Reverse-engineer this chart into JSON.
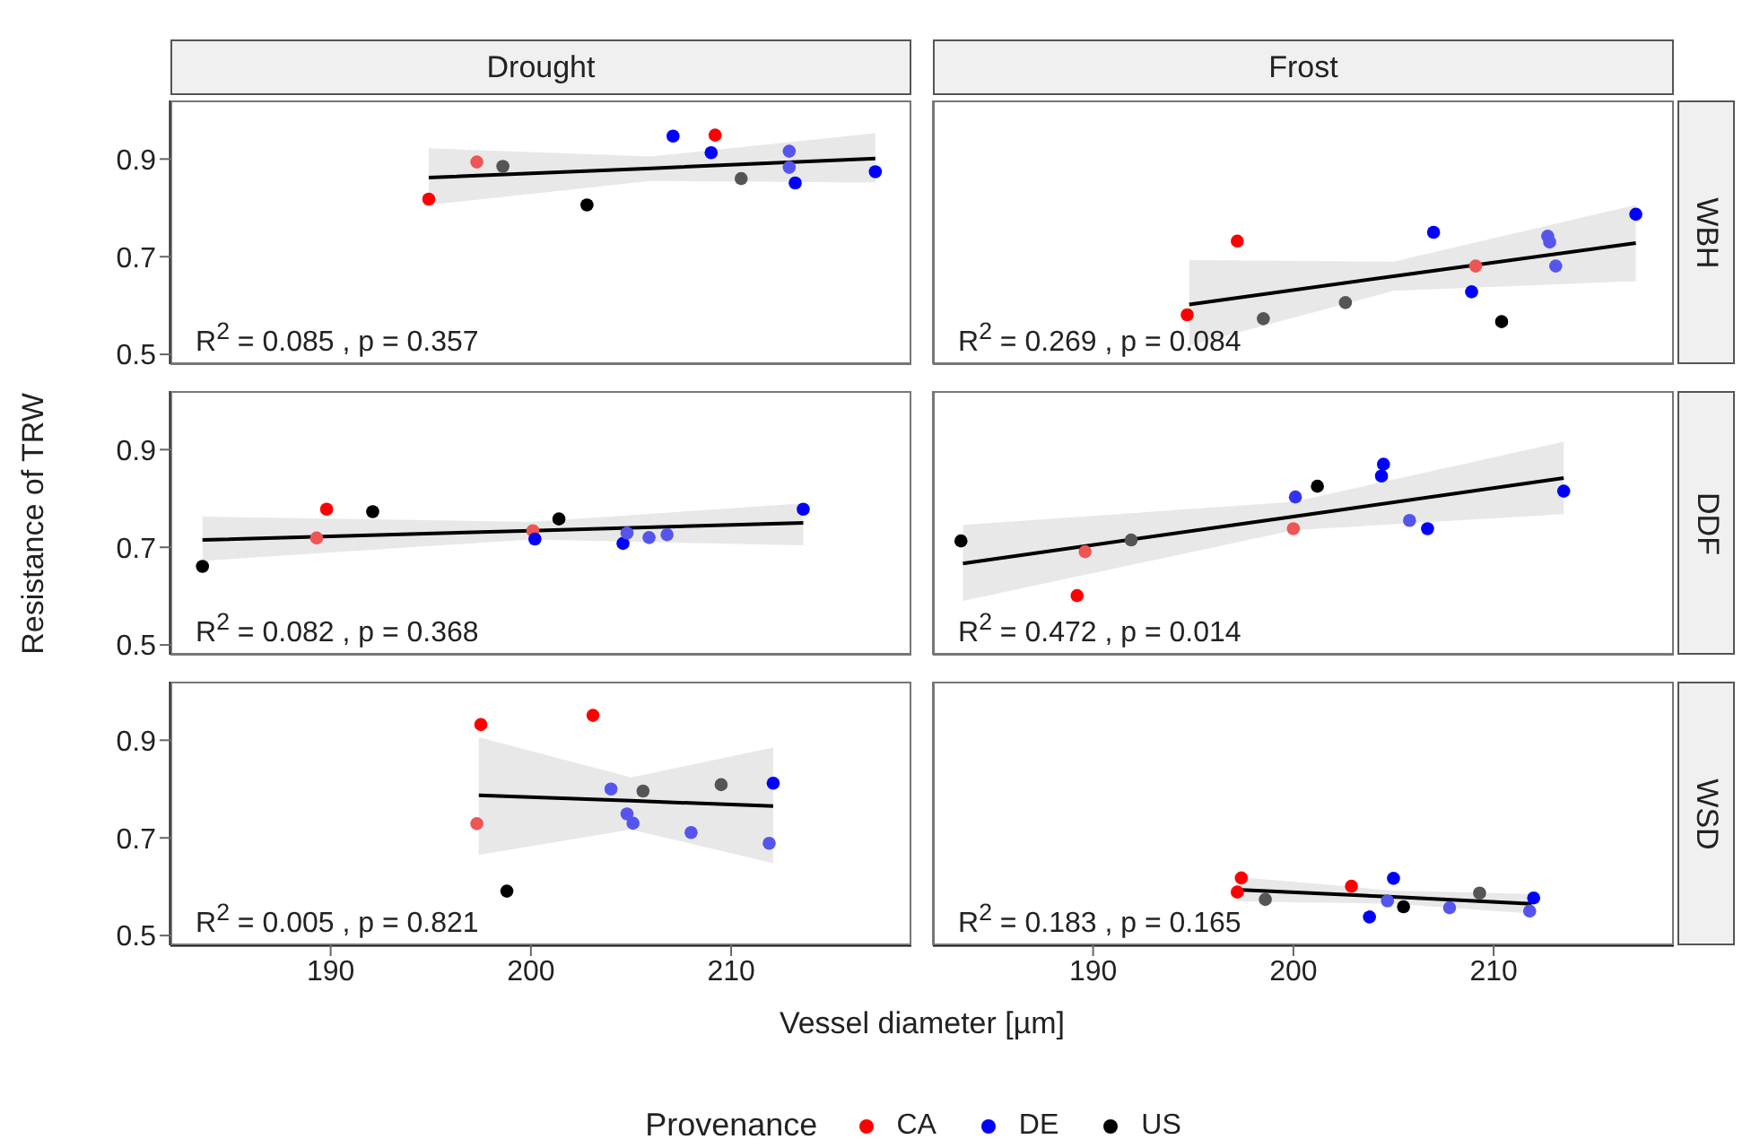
{
  "chart_data": [
    {
      "type": "scatter",
      "title": "Drought",
      "legend": "bottom",
      "legend_title": "Provenance",
      "xlim": [
        182,
        219
      ],
      "xticks": [
        190,
        200,
        210
      ],
      "ylim": [
        0.48,
        1.02
      ],
      "yticks": [
        0.5,
        0.7,
        0.9
      ],
      "tick_labels": "y",
      "marker": "circle",
      "annotations": [
        "R$^{2}$ = 0.085 , p = 0.357"
      ],
      "series": [
        {
          "name": "CA",
          "color": "#ff0000",
          "x": [
            194.9,
            197.3,
            209.2
          ],
          "values": [
            0.818,
            0.894,
            0.949
          ],
          "colors": [
            "#ff0000",
            "#ee5555",
            "#ff0000"
          ]
        },
        {
          "name": "DE",
          "color": "#0000ff",
          "x": [
            207.1,
            209.0,
            212.9,
            212.9,
            213.2,
            217.2
          ],
          "values": [
            0.947,
            0.913,
            0.916,
            0.883,
            0.851,
            0.874
          ],
          "colors": [
            "#0000ff",
            "#0000ff",
            "#5555ee",
            "#5555ee",
            "#0000ff",
            "#0000ff"
          ]
        },
        {
          "name": "US",
          "color": "#000000",
          "x": [
            198.6,
            202.8,
            210.5
          ],
          "values": [
            0.885,
            0.806,
            0.86
          ],
          "colors": [
            "#555555",
            "#000000",
            "#555555"
          ]
        },
        {
          "type": "line",
          "marker": "none",
          "color": "#000000",
          "x": [
            194.9,
            206,
            217.2
          ],
          "values": [
            0.862,
            0.881,
            0.901
          ],
          "lower": [
            0.806,
            0.855,
            0.852
          ],
          "upper": [
            0.922,
            0.905,
            0.953
          ]
        }
      ]
    },
    {
      "type": "scatter",
      "title": "Frost",
      "y2label": "WBH",
      "xlim": [
        182,
        219
      ],
      "xticks": [
        190,
        200,
        210
      ],
      "ylim": [
        0.48,
        1.02
      ],
      "yticks": [
        0.5,
        0.7,
        0.9
      ],
      "tick_labels": false,
      "marker": "circle",
      "annotations": [
        "R$^{2}$ = 0.269 , p = 0.084"
      ],
      "series": [
        {
          "color": "#ff0000",
          "x": [
            194.7,
            197.2,
            209.1
          ],
          "values": [
            0.581,
            0.732,
            0.681
          ],
          "colors": [
            "#ff0000",
            "#ff0000",
            "#ee5555"
          ]
        },
        {
          "color": "#0000ff",
          "x": [
            207.0,
            208.9,
            212.7,
            212.8,
            213.1,
            217.1
          ],
          "values": [
            0.75,
            0.628,
            0.742,
            0.73,
            0.681,
            0.787
          ],
          "colors": [
            "#0000ff",
            "#0000ff",
            "#5555ee",
            "#5555ee",
            "#5555ee",
            "#0000ff"
          ]
        },
        {
          "color": "#000000",
          "x": [
            198.5,
            202.6,
            210.4
          ],
          "values": [
            0.573,
            0.606,
            0.567
          ],
          "colors": [
            "#555555",
            "#555555",
            "#000000"
          ]
        },
        {
          "type": "line",
          "marker": "none",
          "color": "#000000",
          "x": [
            194.8,
            205,
            217.1
          ],
          "values": [
            0.602,
            0.66,
            0.728
          ],
          "lower": [
            0.518,
            0.63,
            0.65
          ],
          "upper": [
            0.693,
            0.69,
            0.806
          ]
        }
      ]
    },
    {
      "type": "scatter",
      "ylabel": "Resistance of TRW",
      "xlim": [
        182,
        219
      ],
      "xticks": [
        190,
        200,
        210
      ],
      "ylim": [
        0.48,
        1.02
      ],
      "yticks": [
        0.5,
        0.7,
        0.9
      ],
      "tick_labels": "y",
      "marker": "circle",
      "annotations": [
        "R$^{2}$ = 0.082 , p = 0.368"
      ],
      "series": [
        {
          "color": "#ff0000",
          "x": [
            189.3,
            189.8,
            200.1
          ],
          "values": [
            0.719,
            0.778,
            0.734
          ],
          "colors": [
            "#ee5555",
            "#ff0000",
            "#ee5555"
          ]
        },
        {
          "color": "#0000ff",
          "x": [
            200.2,
            204.6,
            204.8,
            205.9,
            206.8,
            213.6
          ],
          "values": [
            0.717,
            0.708,
            0.729,
            0.72,
            0.726,
            0.778
          ],
          "colors": [
            "#0000ff",
            "#0000ff",
            "#5555ee",
            "#5555ee",
            "#5555ee",
            "#0000ff"
          ]
        },
        {
          "color": "#000000",
          "x": [
            183.6,
            192.1,
            201.4
          ],
          "values": [
            0.661,
            0.773,
            0.758
          ],
          "colors": [
            "#000000",
            "#000000",
            "#000000"
          ]
        },
        {
          "type": "line",
          "marker": "none",
          "color": "#000000",
          "x": [
            183.6,
            200,
            213.6
          ],
          "values": [
            0.715,
            0.734,
            0.75
          ],
          "lower": [
            0.672,
            0.716,
            0.704
          ],
          "upper": [
            0.763,
            0.752,
            0.79
          ]
        }
      ]
    },
    {
      "type": "scatter",
      "y2label": "DDF",
      "xlim": [
        182,
        219
      ],
      "xticks": [
        190,
        200,
        210
      ],
      "ylim": [
        0.48,
        1.02
      ],
      "yticks": [
        0.5,
        0.7,
        0.9
      ],
      "tick_labels": false,
      "marker": "circle",
      "annotations": [
        "R$^{2}$ = 0.472 , p = 0.014"
      ],
      "series": [
        {
          "color": "#ff0000",
          "x": [
            189.6,
            189.2,
            200.0
          ],
          "values": [
            0.691,
            0.601,
            0.738
          ],
          "colors": [
            "#ee5555",
            "#ff0000",
            "#ee5555"
          ]
        },
        {
          "color": "#0000ff",
          "x": [
            200.1,
            204.5,
            204.4,
            205.8,
            206.7,
            213.5
          ],
          "values": [
            0.803,
            0.87,
            0.846,
            0.755,
            0.738,
            0.815
          ],
          "colors": [
            "#3333f5",
            "#0000ff",
            "#0000ff",
            "#5555ee",
            "#0000ff",
            "#0000ff"
          ]
        },
        {
          "color": "#000000",
          "x": [
            183.4,
            191.9,
            201.2
          ],
          "values": [
            0.713,
            0.715,
            0.825
          ],
          "colors": [
            "#000000",
            "#555555",
            "#000000"
          ]
        },
        {
          "type": "line",
          "marker": "none",
          "color": "#000000",
          "x": [
            183.5,
            200,
            213.5
          ],
          "values": [
            0.667,
            0.763,
            0.842
          ],
          "lower": [
            0.59,
            0.735,
            0.768
          ],
          "upper": [
            0.746,
            0.793,
            0.916
          ]
        }
      ]
    },
    {
      "type": "scatter",
      "xlabel": "Vessel diameter [µm]",
      "xlim": [
        182,
        219
      ],
      "xticks": [
        190,
        200,
        210
      ],
      "ylim": [
        0.48,
        1.02
      ],
      "yticks": [
        0.5,
        0.7,
        0.9
      ],
      "marker": "circle",
      "annotations": [
        "R$^{2}$ = 0.005 , p = 0.821"
      ],
      "series": [
        {
          "color": "#ff0000",
          "x": [
            197.5,
            197.3,
            203.1
          ],
          "values": [
            0.932,
            0.729,
            0.951
          ],
          "colors": [
            "#ff0000",
            "#ee5555",
            "#ff0000"
          ]
        },
        {
          "color": "#0000ff",
          "x": [
            204.0,
            204.8,
            205.1,
            208.0,
            212.1,
            211.9
          ],
          "values": [
            0.8,
            0.749,
            0.73,
            0.711,
            0.812,
            0.689
          ],
          "colors": [
            "#5555ee",
            "#5555ee",
            "#5555ee",
            "#5555ee",
            "#0000ff",
            "#5555ee"
          ]
        },
        {
          "color": "#000000",
          "x": [
            198.8,
            205.6,
            209.5
          ],
          "values": [
            0.591,
            0.796,
            0.809
          ],
          "colors": [
            "#000000",
            "#555555",
            "#555555"
          ]
        },
        {
          "type": "line",
          "marker": "none",
          "color": "#000000",
          "x": [
            197.4,
            205,
            212.1
          ],
          "values": [
            0.787,
            0.776,
            0.765
          ],
          "lower": [
            0.665,
            0.717,
            0.648
          ],
          "upper": [
            0.906,
            0.824,
            0.885
          ]
        }
      ]
    },
    {
      "type": "scatter",
      "y2label": "WSD",
      "xlim": [
        182,
        219
      ],
      "xticks": [
        190,
        200,
        210
      ],
      "ylim": [
        0.48,
        1.02
      ],
      "yticks": [
        0.5,
        0.7,
        0.9
      ],
      "tick_labels": "x",
      "marker": "circle",
      "annotations": [
        "R$^{2}$ = 0.183 , p = 0.165"
      ],
      "series": [
        {
          "color": "#ff0000",
          "x": [
            197.4,
            197.2,
            202.9
          ],
          "values": [
            0.618,
            0.589,
            0.601
          ],
          "colors": [
            "#ff0000",
            "#ff0000",
            "#ff0000"
          ]
        },
        {
          "color": "#0000ff",
          "x": [
            205.0,
            204.7,
            203.8,
            207.8,
            212.0,
            211.8
          ],
          "values": [
            0.617,
            0.571,
            0.538,
            0.557,
            0.577,
            0.55
          ],
          "colors": [
            "#0000ff",
            "#5555ee",
            "#0000ff",
            "#5555ee",
            "#0000ff",
            "#5555ee"
          ]
        },
        {
          "color": "#000000",
          "x": [
            198.6,
            205.5,
            209.3
          ],
          "values": [
            0.574,
            0.559,
            0.587
          ],
          "colors": [
            "#555555",
            "#000000",
            "#555555"
          ]
        },
        {
          "type": "line",
          "marker": "none",
          "color": "#000000",
          "x": [
            197.2,
            205,
            211.9
          ],
          "values": [
            0.594,
            0.579,
            0.565
          ],
          "lower": [
            0.57,
            0.565,
            0.545
          ],
          "upper": [
            0.62,
            0.592,
            0.585
          ]
        }
      ]
    }
  ]
}
